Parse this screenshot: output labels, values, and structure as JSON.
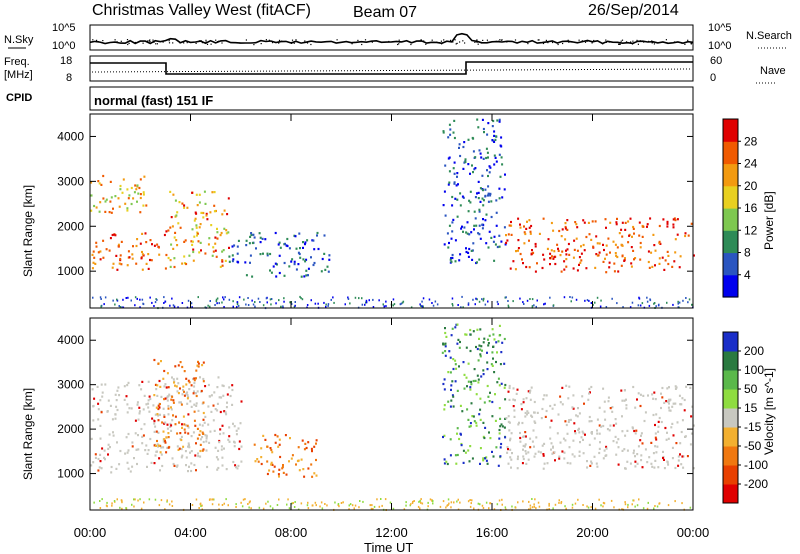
{
  "header": {
    "station": "Christmas Valley West (fitACF)",
    "beam": "Beam 07",
    "date": "26/Sep/2014"
  },
  "status_panels": {
    "nsky_label": "N.Sky",
    "nsky_ticks": [
      "10^5",
      "10^0"
    ],
    "nsearch_label": "N.Search",
    "nsearch_ticks": [
      "10^5",
      "10^0"
    ],
    "freq_label_1": "Freq.",
    "freq_label_2": "[MHz]",
    "freq_ticks": [
      "18",
      "8"
    ],
    "nave_label": "Nave",
    "nave_ticks": [
      "60",
      "0"
    ],
    "cpid_label": "CPID",
    "cpid_text": "normal (fast) 151 IF"
  },
  "chart_data": [
    {
      "type": "heatmap",
      "parameter": "Power",
      "ylabel": "Slant Range [km]",
      "ylim": [
        180,
        4500
      ],
      "yticks": [
        "1000",
        "2000",
        "3000",
        "4000"
      ],
      "xlim_hours": [
        0,
        24
      ],
      "colorbar": {
        "label": "Power [dB]",
        "ticks": [
          "4",
          "8",
          "12",
          "16",
          "20",
          "24",
          "28"
        ],
        "colors": [
          "#0000ee",
          "#2a55c0",
          "#2e8b57",
          "#7ec850",
          "#e8d020",
          "#f39a10",
          "#f05a00",
          "#e00000"
        ]
      },
      "echo_regions": [
        {
          "t0": 0.0,
          "t1": 3.0,
          "r0": 1050,
          "r1": 1900,
          "value": "26-30 dB"
        },
        {
          "t0": 0.0,
          "t1": 2.3,
          "r0": 2300,
          "r1": 3200,
          "value": "12-24 dB"
        },
        {
          "t0": 3.0,
          "t1": 5.5,
          "r0": 1100,
          "r1": 2800,
          "value": "16-28 dB"
        },
        {
          "t0": 5.5,
          "t1": 9.5,
          "r0": 900,
          "r1": 1900,
          "value": "4-12 dB"
        },
        {
          "t0": 14.0,
          "t1": 16.5,
          "r0": 1200,
          "r1": 4400,
          "value": "4-12 dB"
        },
        {
          "t0": 16.5,
          "t1": 24.0,
          "r0": 1000,
          "r1": 2200,
          "value": "20-30 dB"
        }
      ]
    },
    {
      "type": "heatmap",
      "parameter": "Velocity",
      "ylabel": "Slant Range [km]",
      "ylim": [
        180,
        4500
      ],
      "yticks": [
        "1000",
        "2000",
        "3000",
        "4000"
      ],
      "xlim_hours": [
        0,
        24
      ],
      "colorbar": {
        "label": "Velocity [m s^-1]",
        "ticks": [
          "200",
          "100",
          "50",
          "15",
          "-15",
          "-50",
          "-100",
          "-200"
        ],
        "colors": [
          "#1a2ec8",
          "#2a7a40",
          "#5ab84a",
          "#8fdc40",
          "#c8c8c0",
          "#f3b030",
          "#f07810",
          "#e84000",
          "#e00000"
        ]
      },
      "echo_regions": [
        {
          "t0": 0.0,
          "t1": 6.0,
          "r0": 1050,
          "r1": 3200,
          "value": "ground scatter (~0 m/s)"
        },
        {
          "t0": 2.5,
          "t1": 4.5,
          "r0": 1500,
          "r1": 3600,
          "value": "-15 to -100 m/s"
        },
        {
          "t0": 6.5,
          "t1": 9.0,
          "r0": 900,
          "r1": 1900,
          "value": "-50 to -100 m/s"
        },
        {
          "t0": 14.0,
          "t1": 16.5,
          "r0": 1200,
          "r1": 4400,
          "value": "50 to 200 m/s"
        },
        {
          "t0": 16.5,
          "t1": 24.0,
          "r0": 1100,
          "r1": 3000,
          "value": "ground scatter (~0 m/s)"
        }
      ]
    }
  ],
  "x_axis": {
    "label": "Time UT",
    "ticks": [
      "00:00",
      "04:00",
      "08:00",
      "12:00",
      "16:00",
      "20:00",
      "00:00"
    ]
  }
}
